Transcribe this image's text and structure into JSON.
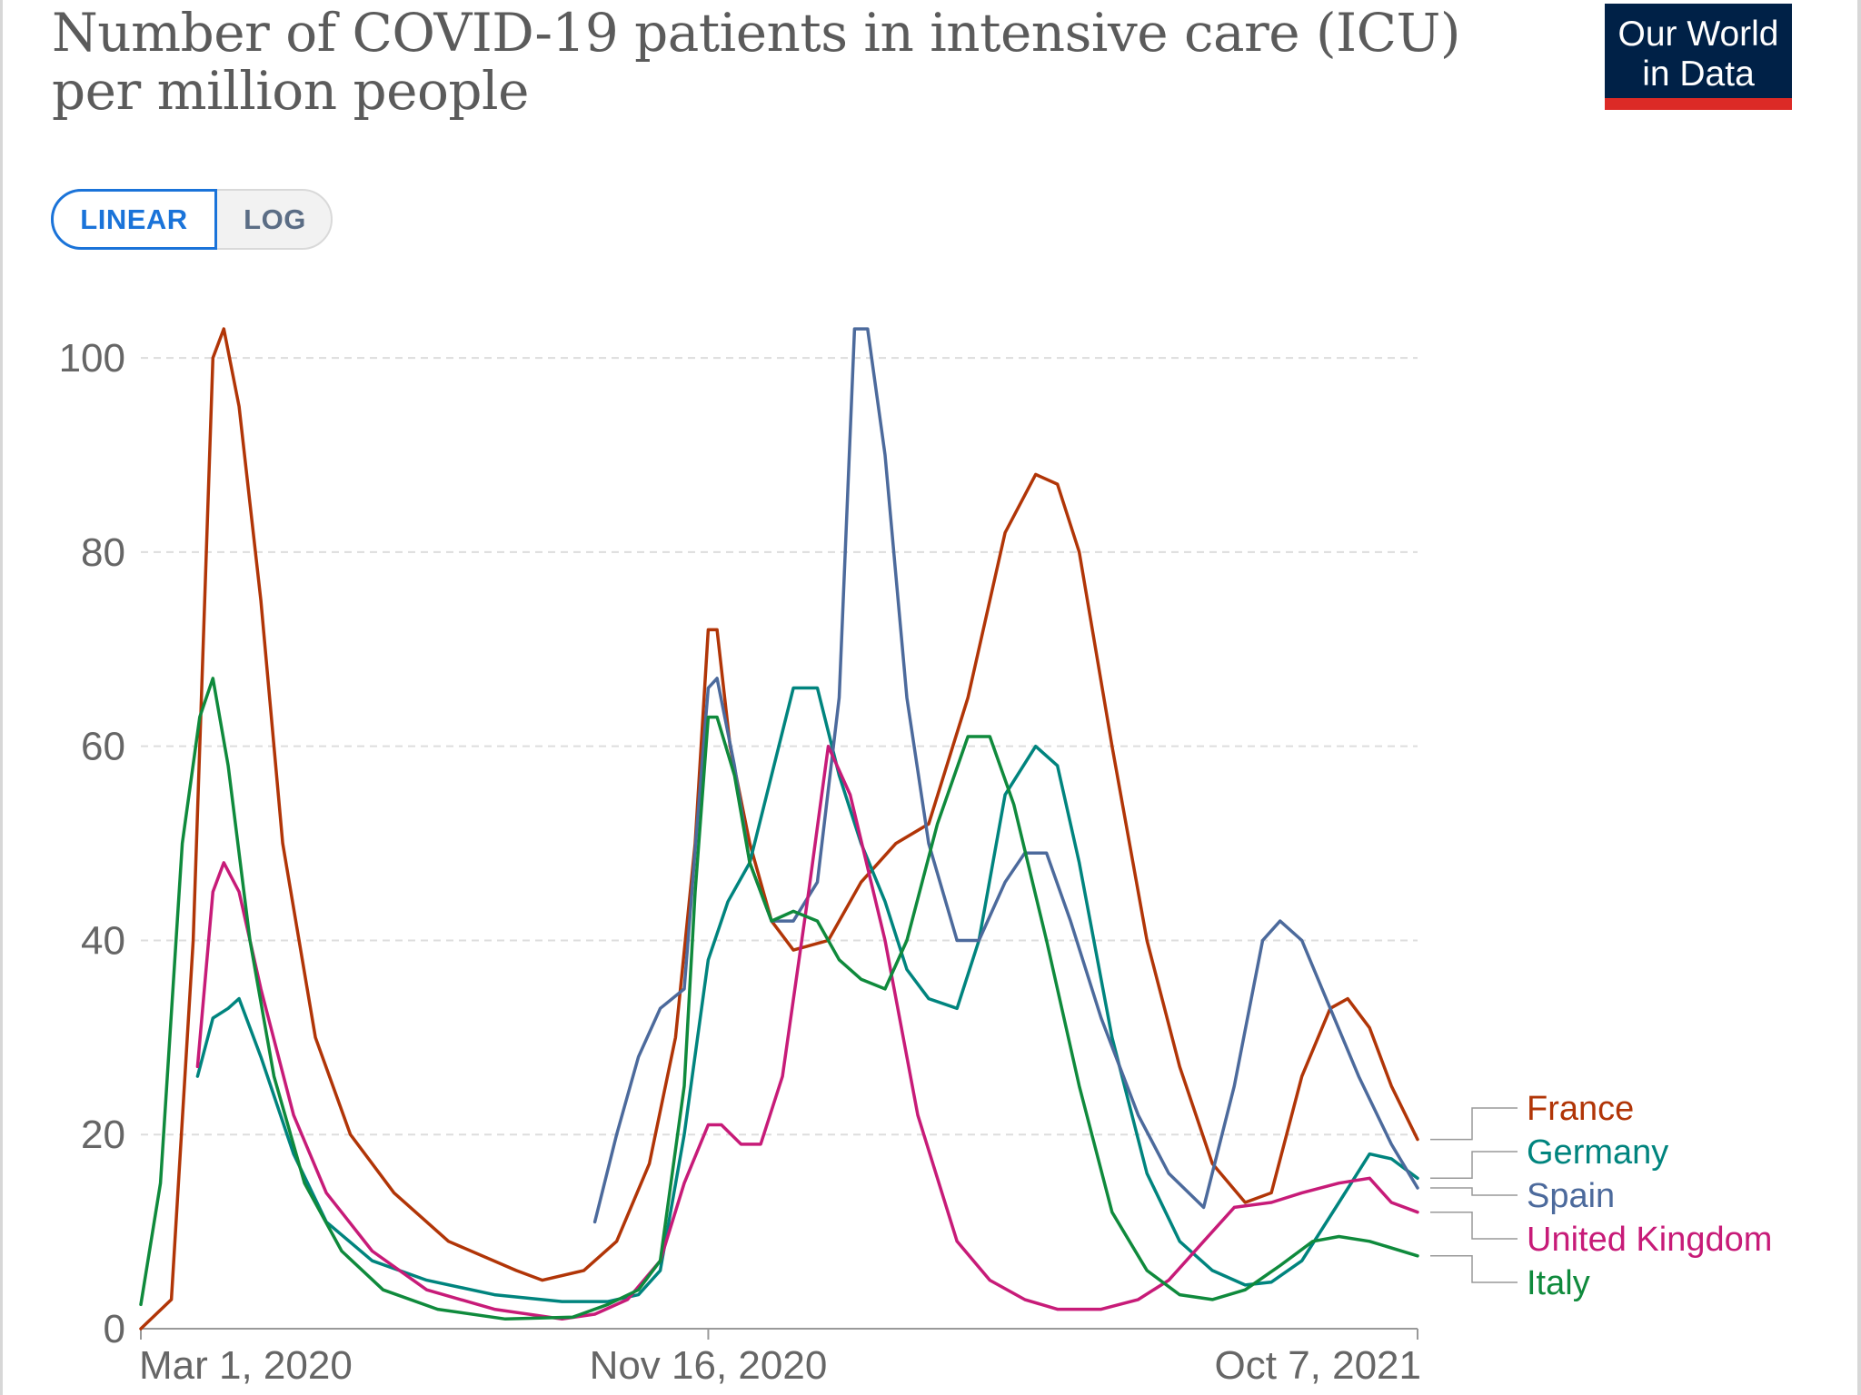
{
  "title_line1": "Number of COVID-19 patients in intensive care (ICU)",
  "title_line2": "per million people",
  "logo": {
    "line1": "Our World",
    "line2": "in Data"
  },
  "scale_toggle": {
    "linear_label": "LINEAR",
    "log_label": "LOG",
    "selected": "LINEAR"
  },
  "colors": {
    "France": "#b13507",
    "Germany": "#00847e",
    "Spain": "#4c6a9c",
    "United Kingdom": "#c71b78",
    "Italy": "#0f8a3c",
    "grid": "#dddddd",
    "axis": "#999999"
  },
  "chart_data": {
    "type": "line",
    "title": "Number of COVID-19 patients in intensive care (ICU) per million people",
    "xlabel": "",
    "ylabel": "",
    "x_ticks": [
      "Mar 1, 2020",
      "Nov 16, 2020",
      "Oct 7, 2021"
    ],
    "y_ticks": [
      0,
      20,
      40,
      60,
      80,
      100
    ],
    "ylim": [
      0,
      106
    ],
    "xlim": [
      "2020-03-01",
      "2021-10-07"
    ],
    "grid": "horizontal dashed",
    "legend": "right, labels at line ends",
    "series": [
      {
        "name": "France",
        "points": [
          [
            "2020-03-01",
            0
          ],
          [
            "2020-03-15",
            3
          ],
          [
            "2020-03-25",
            40
          ],
          [
            "2020-04-03",
            100
          ],
          [
            "2020-04-08",
            103
          ],
          [
            "2020-04-15",
            95
          ],
          [
            "2020-04-25",
            75
          ],
          [
            "2020-05-05",
            50
          ],
          [
            "2020-05-20",
            30
          ],
          [
            "2020-06-05",
            20
          ],
          [
            "2020-06-25",
            14
          ],
          [
            "2020-07-20",
            9
          ],
          [
            "2020-08-20",
            6
          ],
          [
            "2020-09-01",
            5
          ],
          [
            "2020-09-20",
            6
          ],
          [
            "2020-10-05",
            9
          ],
          [
            "2020-10-20",
            17
          ],
          [
            "2020-11-01",
            30
          ],
          [
            "2020-11-10",
            50
          ],
          [
            "2020-11-16",
            72
          ],
          [
            "2020-11-20",
            72
          ],
          [
            "2020-11-26",
            60
          ],
          [
            "2020-12-05",
            50
          ],
          [
            "2020-12-15",
            42
          ],
          [
            "2020-12-25",
            39
          ],
          [
            "2021-01-10",
            40
          ],
          [
            "2021-01-25",
            46
          ],
          [
            "2021-02-10",
            50
          ],
          [
            "2021-02-25",
            52
          ],
          [
            "2021-03-15",
            65
          ],
          [
            "2021-04-01",
            82
          ],
          [
            "2021-04-15",
            88
          ],
          [
            "2021-04-25",
            87
          ],
          [
            "2021-05-05",
            80
          ],
          [
            "2021-05-20",
            60
          ],
          [
            "2021-06-05",
            40
          ],
          [
            "2021-06-20",
            27
          ],
          [
            "2021-07-05",
            17
          ],
          [
            "2021-07-20",
            13
          ],
          [
            "2021-08-01",
            14
          ],
          [
            "2021-08-15",
            26
          ],
          [
            "2021-08-28",
            33
          ],
          [
            "2021-09-05",
            34
          ],
          [
            "2021-09-15",
            31
          ],
          [
            "2021-09-25",
            25
          ],
          [
            "2021-10-07",
            19.5
          ]
        ]
      },
      {
        "name": "Germany",
        "points": [
          [
            "2020-03-27",
            26
          ],
          [
            "2020-04-03",
            32
          ],
          [
            "2020-04-10",
            33
          ],
          [
            "2020-04-15",
            34
          ],
          [
            "2020-04-25",
            28
          ],
          [
            "2020-05-10",
            18
          ],
          [
            "2020-05-25",
            11
          ],
          [
            "2020-06-15",
            7
          ],
          [
            "2020-07-10",
            5
          ],
          [
            "2020-08-10",
            3.5
          ],
          [
            "2020-09-10",
            2.8
          ],
          [
            "2020-10-01",
            2.8
          ],
          [
            "2020-10-15",
            3.5
          ],
          [
            "2020-10-25",
            6
          ],
          [
            "2020-11-05",
            20
          ],
          [
            "2020-11-16",
            38
          ],
          [
            "2020-11-25",
            44
          ],
          [
            "2020-12-05",
            48
          ],
          [
            "2020-12-15",
            57
          ],
          [
            "2020-12-25",
            66
          ],
          [
            "2021-01-05",
            66
          ],
          [
            "2021-01-15",
            57
          ],
          [
            "2021-01-25",
            50
          ],
          [
            "2021-02-05",
            44
          ],
          [
            "2021-02-15",
            37
          ],
          [
            "2021-02-25",
            34
          ],
          [
            "2021-03-10",
            33
          ],
          [
            "2021-03-20",
            40
          ],
          [
            "2021-04-01",
            55
          ],
          [
            "2021-04-15",
            60
          ],
          [
            "2021-04-25",
            58
          ],
          [
            "2021-05-05",
            48
          ],
          [
            "2021-05-20",
            30
          ],
          [
            "2021-06-05",
            16
          ],
          [
            "2021-06-20",
            9
          ],
          [
            "2021-07-05",
            6
          ],
          [
            "2021-07-20",
            4.5
          ],
          [
            "2021-08-01",
            4.8
          ],
          [
            "2021-08-15",
            7
          ],
          [
            "2021-09-01",
            13
          ],
          [
            "2021-09-15",
            18
          ],
          [
            "2021-09-25",
            17.5
          ],
          [
            "2021-10-07",
            15.5
          ]
        ]
      },
      {
        "name": "Spain",
        "points": [
          [
            "2020-09-25",
            11
          ],
          [
            "2020-10-05",
            20
          ],
          [
            "2020-10-15",
            28
          ],
          [
            "2020-10-25",
            33
          ],
          [
            "2020-11-05",
            35
          ],
          [
            "2020-11-12",
            55
          ],
          [
            "2020-11-16",
            66
          ],
          [
            "2020-11-20",
            67
          ],
          [
            "2020-11-28",
            58
          ],
          [
            "2020-12-05",
            48
          ],
          [
            "2020-12-15",
            42
          ],
          [
            "2020-12-25",
            42
          ],
          [
            "2021-01-05",
            46
          ],
          [
            "2021-01-15",
            65
          ],
          [
            "2021-01-22",
            103
          ],
          [
            "2021-01-28",
            103
          ],
          [
            "2021-02-05",
            90
          ],
          [
            "2021-02-15",
            65
          ],
          [
            "2021-02-25",
            50
          ],
          [
            "2021-03-10",
            40
          ],
          [
            "2021-03-20",
            40
          ],
          [
            "2021-04-01",
            46
          ],
          [
            "2021-04-10",
            49
          ],
          [
            "2021-04-20",
            49
          ],
          [
            "2021-05-01",
            42
          ],
          [
            "2021-05-15",
            32
          ],
          [
            "2021-06-01",
            22
          ],
          [
            "2021-06-15",
            16
          ],
          [
            "2021-07-01",
            12.5
          ],
          [
            "2021-07-15",
            25
          ],
          [
            "2021-07-28",
            40
          ],
          [
            "2021-08-05",
            42
          ],
          [
            "2021-08-15",
            40
          ],
          [
            "2021-08-28",
            33
          ],
          [
            "2021-09-10",
            26
          ],
          [
            "2021-09-25",
            19
          ],
          [
            "2021-10-07",
            14.5
          ]
        ]
      },
      {
        "name": "United Kingdom",
        "points": [
          [
            "2020-03-27",
            27
          ],
          [
            "2020-04-03",
            45
          ],
          [
            "2020-04-08",
            48
          ],
          [
            "2020-04-15",
            45
          ],
          [
            "2020-04-25",
            35
          ],
          [
            "2020-05-10",
            22
          ],
          [
            "2020-05-25",
            14
          ],
          [
            "2020-06-15",
            8
          ],
          [
            "2020-07-10",
            4
          ],
          [
            "2020-08-10",
            2
          ],
          [
            "2020-09-10",
            1
          ],
          [
            "2020-09-25",
            1.5
          ],
          [
            "2020-10-10",
            3
          ],
          [
            "2020-10-25",
            7
          ],
          [
            "2020-11-05",
            15
          ],
          [
            "2020-11-16",
            21
          ],
          [
            "2020-11-22",
            21
          ],
          [
            "2020-12-01",
            19
          ],
          [
            "2020-12-10",
            19
          ],
          [
            "2020-12-20",
            26
          ],
          [
            "2021-01-01",
            45
          ],
          [
            "2021-01-10",
            60
          ],
          [
            "2021-01-20",
            55
          ],
          [
            "2021-02-05",
            40
          ],
          [
            "2021-02-20",
            22
          ],
          [
            "2021-03-10",
            9
          ],
          [
            "2021-03-25",
            5
          ],
          [
            "2021-04-10",
            3
          ],
          [
            "2021-04-25",
            2
          ],
          [
            "2021-05-15",
            2
          ],
          [
            "2021-06-01",
            3
          ],
          [
            "2021-06-15",
            5
          ],
          [
            "2021-07-01",
            9
          ],
          [
            "2021-07-15",
            12.5
          ],
          [
            "2021-08-01",
            13
          ],
          [
            "2021-08-15",
            14
          ],
          [
            "2021-09-01",
            15
          ],
          [
            "2021-09-15",
            15.5
          ],
          [
            "2021-09-25",
            13
          ],
          [
            "2021-10-07",
            12
          ]
        ]
      },
      {
        "name": "Italy",
        "points": [
          [
            "2020-03-01",
            2.5
          ],
          [
            "2020-03-10",
            15
          ],
          [
            "2020-03-20",
            50
          ],
          [
            "2020-03-28",
            63
          ],
          [
            "2020-04-03",
            67
          ],
          [
            "2020-04-10",
            58
          ],
          [
            "2020-04-20",
            40
          ],
          [
            "2020-05-01",
            26
          ],
          [
            "2020-05-15",
            15
          ],
          [
            "2020-06-01",
            8
          ],
          [
            "2020-06-20",
            4
          ],
          [
            "2020-07-15",
            2
          ],
          [
            "2020-08-15",
            1
          ],
          [
            "2020-09-15",
            1.2
          ],
          [
            "2020-10-01",
            2.5
          ],
          [
            "2020-10-15",
            4
          ],
          [
            "2020-10-25",
            7
          ],
          [
            "2020-11-05",
            25
          ],
          [
            "2020-11-10",
            45
          ],
          [
            "2020-11-16",
            63
          ],
          [
            "2020-11-20",
            63
          ],
          [
            "2020-11-28",
            57
          ],
          [
            "2020-12-05",
            48
          ],
          [
            "2020-12-15",
            42
          ],
          [
            "2020-12-25",
            43
          ],
          [
            "2021-01-05",
            42
          ],
          [
            "2021-01-15",
            38
          ],
          [
            "2021-01-25",
            36
          ],
          [
            "2021-02-05",
            35
          ],
          [
            "2021-02-15",
            40
          ],
          [
            "2021-03-01",
            52
          ],
          [
            "2021-03-15",
            61
          ],
          [
            "2021-03-25",
            61
          ],
          [
            "2021-04-05",
            54
          ],
          [
            "2021-04-20",
            40
          ],
          [
            "2021-05-05",
            25
          ],
          [
            "2021-05-20",
            12
          ],
          [
            "2021-06-05",
            6
          ],
          [
            "2021-06-20",
            3.5
          ],
          [
            "2021-07-05",
            3
          ],
          [
            "2021-07-20",
            4
          ],
          [
            "2021-08-05",
            6.5
          ],
          [
            "2021-08-20",
            9
          ],
          [
            "2021-09-01",
            9.5
          ],
          [
            "2021-09-15",
            9
          ],
          [
            "2021-10-07",
            7.5
          ]
        ]
      }
    ]
  }
}
